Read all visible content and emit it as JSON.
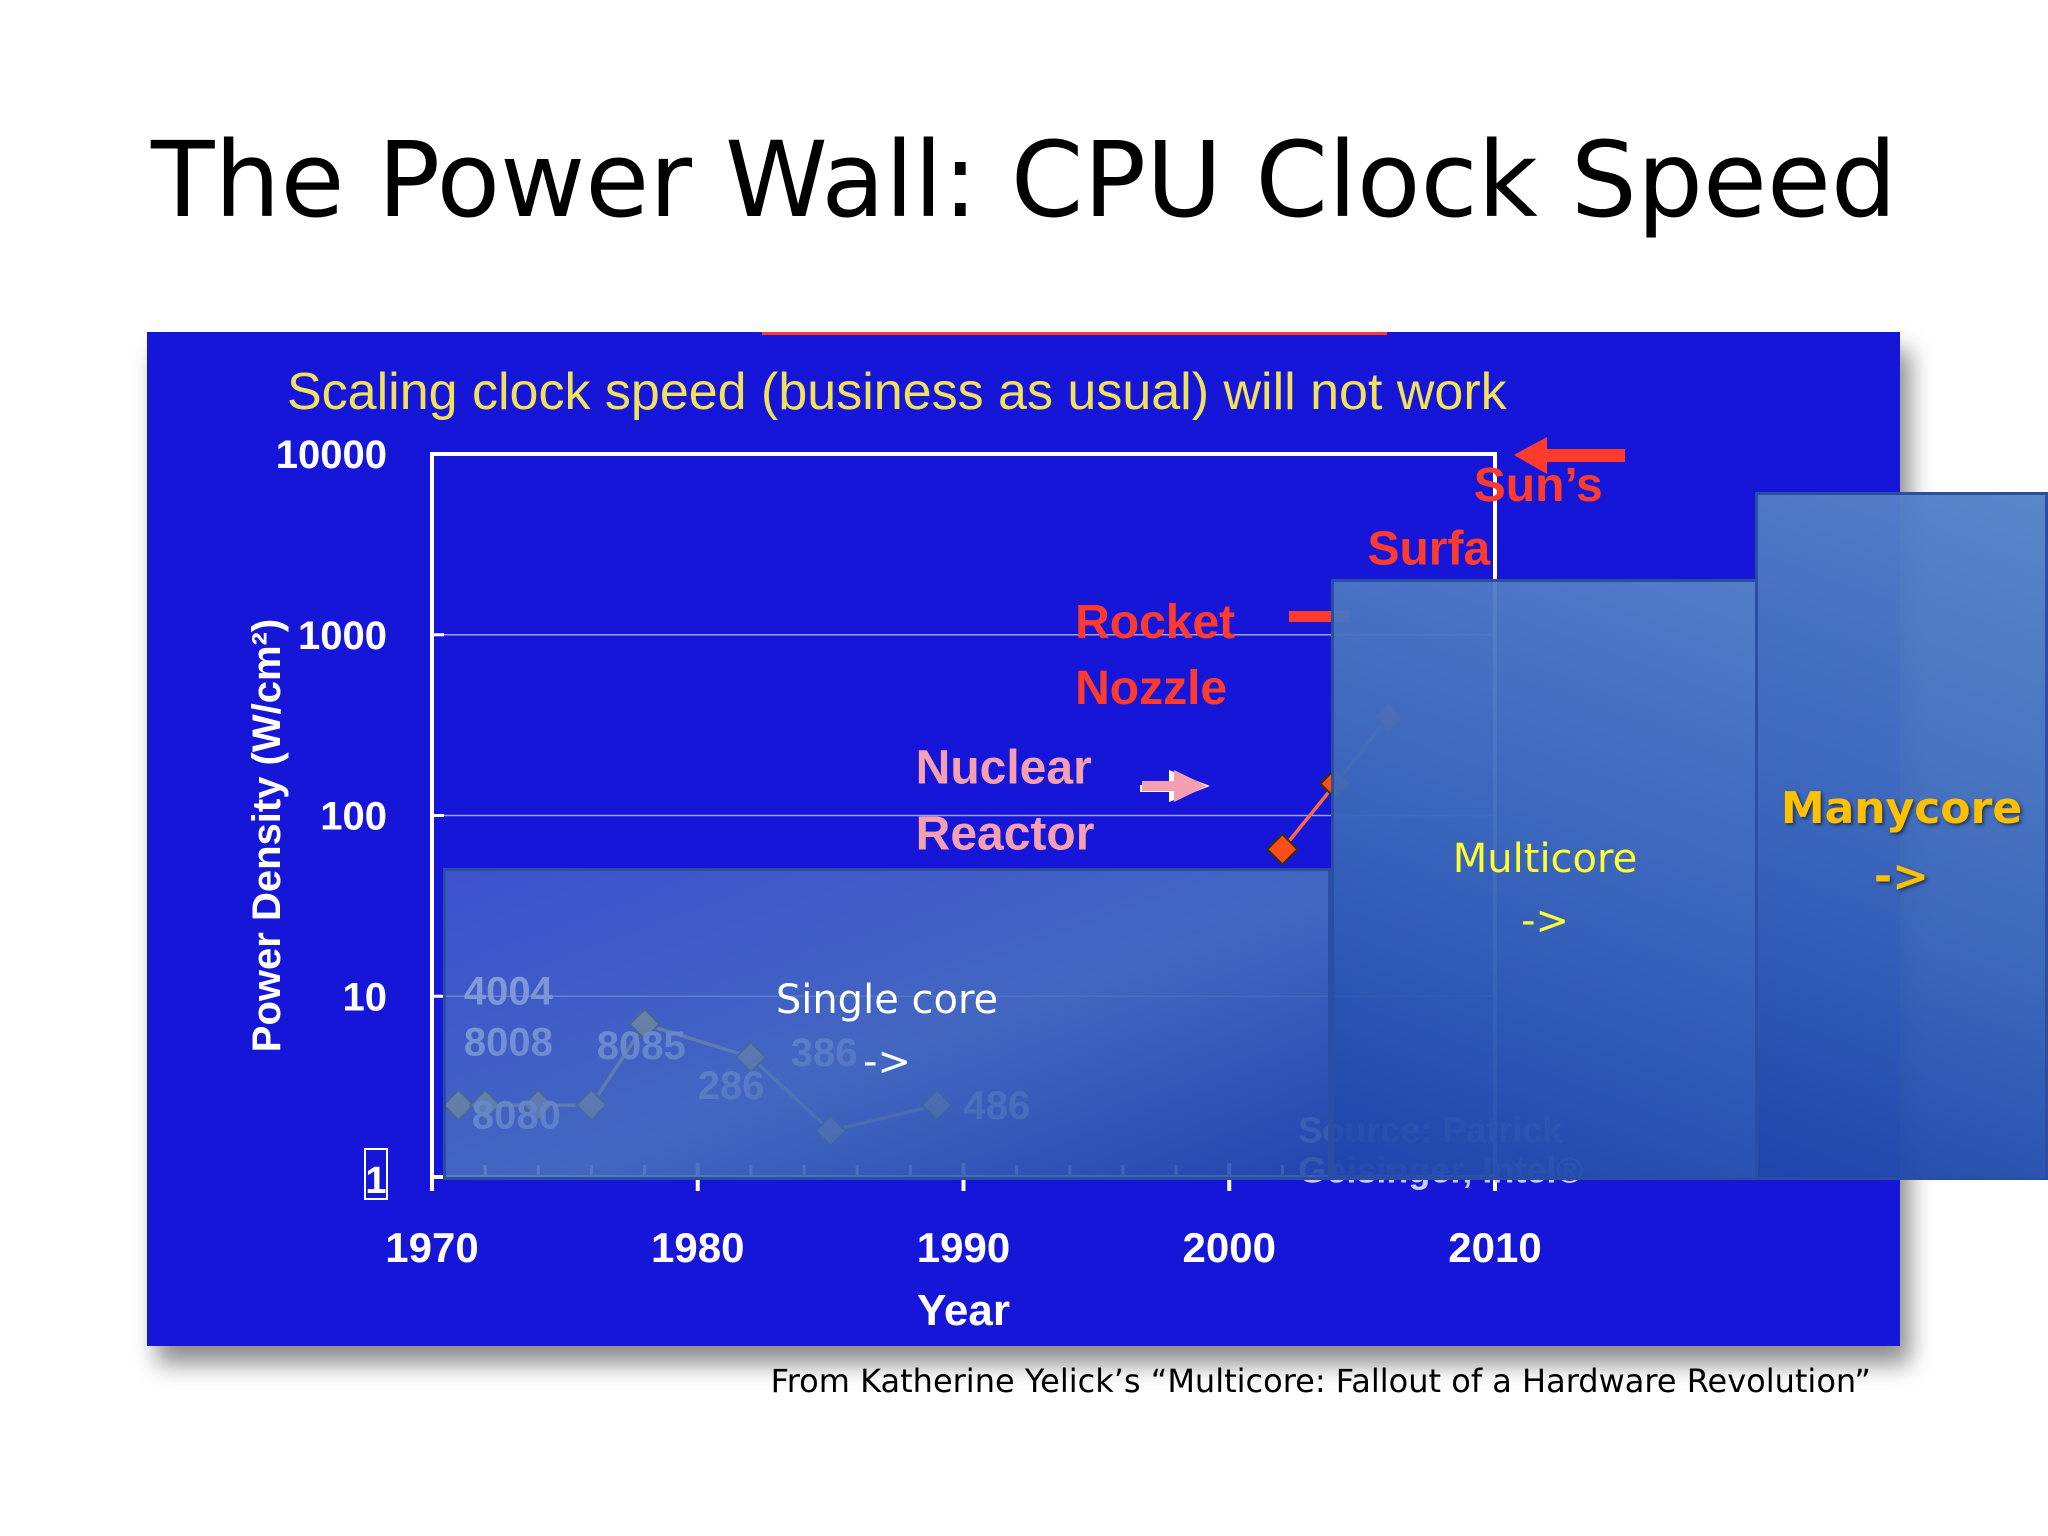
{
  "slide": {
    "title": "The Power Wall: CPU Clock Speed",
    "citation": "From Katherine Yelick’s “Multicore: Fallout of a Hardware Revolution”"
  },
  "overlays": {
    "single_core": {
      "label": "Single core",
      "arrow": "->"
    },
    "multicore": {
      "label": "Multicore",
      "arrow": "->"
    },
    "manycore": {
      "label": "Manycore",
      "arrow": "->"
    }
  },
  "colors": {
    "chart_background": "#1616d8",
    "chart_title": "#f2e15a",
    "marker_old": "#c8b84a",
    "marker_new": "#ff4d1a",
    "reference_red": "#ff3b2e",
    "reference_pink": "#f4a0b0",
    "single_core_text": "#ffffff",
    "multicore_text": "#ffff33",
    "manycore_text": "#ffc000"
  },
  "chart_data": {
    "type": "line",
    "title": "Scaling clock speed (business as usual) will not work",
    "xlabel": "Year",
    "ylabel": "Power Density (W/cm²)",
    "xlim": [
      1970,
      2010
    ],
    "ylim": [
      1,
      10000
    ],
    "yscale": "log",
    "grid": true,
    "x_ticks": [
      "1970",
      "1980",
      "1990",
      "2000",
      "2010"
    ],
    "y_ticks": [
      "1",
      "10",
      "100",
      "1000",
      "10000"
    ],
    "series": [
      {
        "points": [
          {
            "x": 1971,
            "y": 2.5
          },
          {
            "x": 1972,
            "y": 2.5
          },
          {
            "x": 1974,
            "y": 2.5
          },
          {
            "x": 1976,
            "y": 2.5
          },
          {
            "x": 1978,
            "y": 7
          },
          {
            "x": 1982,
            "y": 4.6
          },
          {
            "x": 1985,
            "y": 1.8
          },
          {
            "x": 1989,
            "y": 2.5
          },
          {
            "x": 2002,
            "y": 65
          },
          {
            "x": 2004,
            "y": 150
          },
          {
            "x": 2006,
            "y": 350
          }
        ]
      }
    ],
    "point_labels": [
      {
        "text": "4004",
        "x": 1971.2,
        "y": 9
      },
      {
        "text": "8008",
        "x": 1971.2,
        "y": 4.7
      },
      {
        "text": "8080",
        "x": 1971.5,
        "y": 1.85
      },
      {
        "text": "8085",
        "x": 1976.2,
        "y": 4.5
      },
      {
        "text": "286",
        "x": 1980.0,
        "y": 2.7
      },
      {
        "text": "386",
        "x": 1983.5,
        "y": 4.1
      },
      {
        "text": "486",
        "x": 1990.0,
        "y": 2.1
      }
    ],
    "annotations": [
      {
        "text": "Sun’s",
        "x": 2009.2,
        "y": 5500
      },
      {
        "text": "Surfa",
        "x": 2005.2,
        "y": 2450
      },
      {
        "text": "Rocket",
        "x": 1994.2,
        "y": 960
      },
      {
        "text": "Nozzle",
        "x": 1994.2,
        "y": 415
      },
      {
        "text": "Nuclear",
        "x": 1988.2,
        "y": 150
      },
      {
        "text": "Reactor",
        "x": 1988.2,
        "y": 65
      },
      {
        "text": "Source: Patrick",
        "x": 2002.6,
        "y": 1.55
      },
      {
        "text": "Geisinger, Intel®",
        "x": 2002.6,
        "y": 0.93
      }
    ]
  }
}
